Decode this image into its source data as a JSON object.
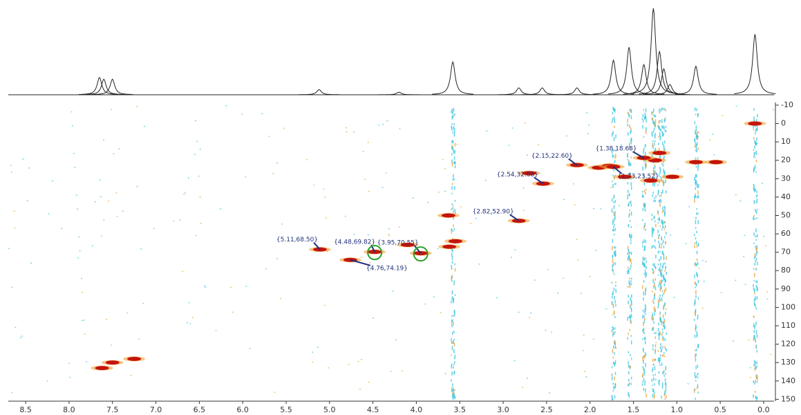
{
  "chart_data": {
    "type": "scatter",
    "xlim": [
      8.7,
      -0.12
    ],
    "xticks": [
      8.5,
      {
        "value": 8,
        "label": "8.0"
      },
      7.5,
      {
        "value": 7,
        "label": "7.0"
      },
      6.5,
      {
        "value": 6,
        "label": "6.0"
      },
      5.5,
      {
        "value": 5,
        "label": "5.0"
      },
      4.5,
      {
        "value": 4,
        "label": "4.0"
      },
      3.5,
      {
        "value": 3,
        "label": "3.0"
      },
      2.5,
      {
        "value": 2,
        "label": "2.0"
      },
      1.5,
      {
        "value": 1,
        "label": "1.0"
      },
      0.5,
      {
        "value": 0,
        "label": "0.0"
      }
    ],
    "ylim": [
      -11.5,
      151
    ],
    "yticks": [
      -10,
      0,
      10,
      20,
      30,
      40,
      50,
      60,
      70,
      80,
      90,
      100,
      110,
      120,
      130,
      140,
      150
    ],
    "grid": false,
    "color": "#c4140c",
    "x": [
      7.62,
      7.5,
      7.25,
      3.55,
      3.62,
      2.7,
      1.9,
      1.78,
      1.25,
      1.2,
      1.05,
      0.78,
      0.55,
      0.1,
      4.1,
      1.6,
      3.63,
      1.3
    ],
    "values": [
      133,
      130,
      128,
      64,
      67,
      27,
      24,
      23,
      20,
      16,
      29,
      21,
      21,
      0,
      66,
      29,
      50,
      31
    ],
    "annotations": [
      {
        "text": "{5.11,68.50}",
        "x": 5.11,
        "y": 68.5,
        "circled": false
      },
      {
        "text": "{4.48,69.82}",
        "x": 4.48,
        "y": 69.82,
        "circled": true
      },
      {
        "text": "{3.95,70.55}",
        "x": 3.95,
        "y": 70.55,
        "circled": true
      },
      {
        "text": "{4.76,74.19}",
        "x": 4.76,
        "y": 74.19,
        "circled": false
      },
      {
        "text": "{2.82,52.90}",
        "x": 2.82,
        "y": 52.9,
        "circled": false
      },
      {
        "text": "{2.54,32.68}",
        "x": 2.54,
        "y": 32.68,
        "circled": false
      },
      {
        "text": "{2.15,22.60}",
        "x": 2.15,
        "y": 22.6,
        "circled": false
      },
      {
        "text": "{1.38,18.68}",
        "x": 1.38,
        "y": 18.68,
        "circled": false
      },
      {
        "text": "{1.73,23.52}",
        "x": 1.73,
        "y": 23.52,
        "circled": false
      }
    ],
    "projection": {
      "x": [
        7.65,
        7.6,
        7.5,
        5.12,
        4.2,
        3.58,
        2.82,
        2.55,
        2.15,
        1.73,
        1.55,
        1.38,
        1.27,
        1.2,
        1.15,
        1.08,
        0.78,
        0.1
      ],
      "values": [
        20,
        18,
        18,
        6,
        3,
        38,
        8,
        8,
        8,
        40,
        55,
        35,
        100,
        50,
        30,
        12,
        33,
        70
      ]
    }
  }
}
